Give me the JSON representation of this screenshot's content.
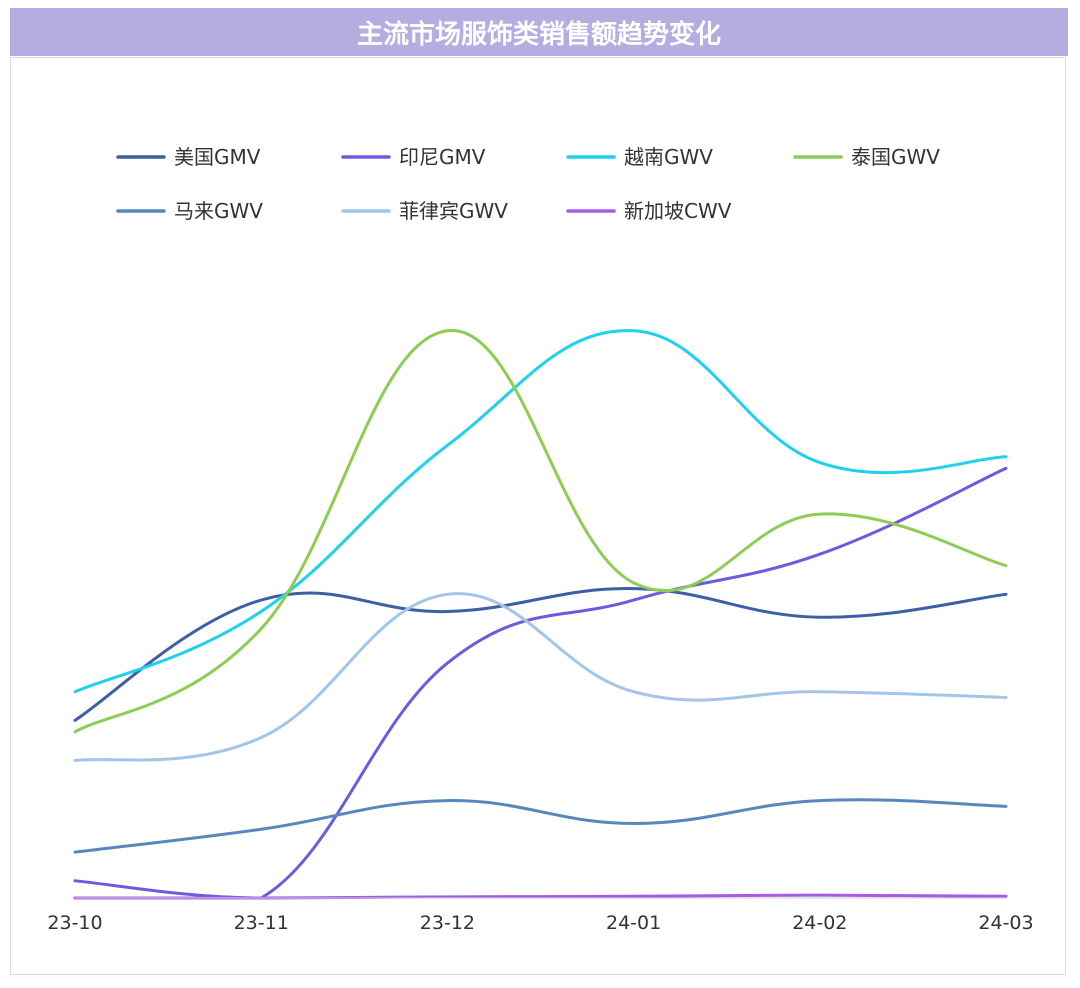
{
  "title": "主流市场服饰类销售额趋势变化",
  "chart_data": {
    "type": "line",
    "title": "主流市场服饰类销售额趋势变化",
    "xlabel": "",
    "ylabel": "",
    "categories": [
      "23-10",
      "23-11",
      "23-12",
      "24-01",
      "24-02",
      "24-03"
    ],
    "ylim": [
      0,
      100
    ],
    "grid": false,
    "legend_position": "top",
    "smooth": true,
    "series": [
      {
        "name": "美国GMV",
        "color": "#3d5fa3",
        "values": [
          31,
          52,
          50,
          54,
          49,
          53
        ]
      },
      {
        "name": "印尼GMV",
        "color": "#6b5be0",
        "values": [
          3,
          0,
          41,
          52,
          60,
          75
        ]
      },
      {
        "name": "越南GWV",
        "color": "#1fd0ef",
        "values": [
          36,
          50,
          79,
          99,
          76,
          77
        ]
      },
      {
        "name": "泰国GWV",
        "color": "#8fcc52",
        "values": [
          29,
          47,
          99,
          55,
          67,
          58
        ]
      },
      {
        "name": "马来GWV",
        "color": "#5788bd",
        "values": [
          8,
          12,
          17,
          13,
          17,
          16
        ]
      },
      {
        "name": "菲律宾GWV",
        "color": "#a2c5e8",
        "values": [
          24,
          28,
          53,
          36,
          36,
          35
        ]
      },
      {
        "name": "新加坡CWV",
        "color": "#a65be8",
        "values": [
          0,
          0,
          0.2,
          0.3,
          0.5,
          0.3
        ]
      }
    ]
  }
}
